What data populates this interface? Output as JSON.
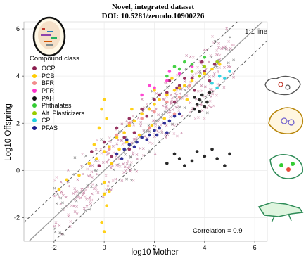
{
  "header": {
    "title": "Novel, integrated dataset",
    "subtitle": "DOI: 10.5281/zenodo.10900226"
  },
  "legend": {
    "title": "Compound class",
    "items": [
      {
        "label": "OCP",
        "color": "#8b1e4f"
      },
      {
        "label": "PCB",
        "color": "#ffcc00"
      },
      {
        "label": "BFR",
        "color": "#f28c8c"
      },
      {
        "label": "PFR",
        "color": "#ff33cc"
      },
      {
        "label": "PAH",
        "color": "#111111"
      },
      {
        "label": "Phthalates",
        "color": "#33cc33"
      },
      {
        "label": "Alt. Plasticizers",
        "color": "#99cc00"
      },
      {
        "label": "CP",
        "color": "#1fd0e0"
      },
      {
        "label": "PFAS",
        "color": "#1a1a8c"
      }
    ]
  },
  "annotations": {
    "line_label": "1:1 line",
    "correlation": "Correlation =  0.9"
  },
  "chart_data": {
    "type": "scatter",
    "xlabel": "log10 Mother",
    "ylabel": "Log10 Offspring",
    "xlim": [
      -3.2,
      6.5
    ],
    "ylim": [
      -3.0,
      6.3
    ],
    "x_ticks": [
      -2,
      0,
      2,
      4,
      6
    ],
    "y_ticks": [
      -2,
      0,
      2,
      4,
      6
    ],
    "grid": true,
    "reference_lines": [
      {
        "name": "1:1 line",
        "slope": 1,
        "intercept": 0,
        "style": "solid"
      },
      {
        "slope": 1,
        "intercept": 1,
        "style": "dashed"
      },
      {
        "slope": 1,
        "intercept": -1,
        "style": "dashed"
      }
    ],
    "correlation": 0.9,
    "series": [
      {
        "name": "OCP",
        "color": "#8b1e4f",
        "points": [
          [
            -0.5,
            0.8
          ],
          [
            0,
            1.2
          ],
          [
            0.5,
            1.8
          ],
          [
            1,
            2.2
          ],
          [
            1.5,
            2.6
          ],
          [
            2,
            3.0
          ],
          [
            2.5,
            3.3
          ],
          [
            3,
            3.6
          ],
          [
            3.5,
            3.9
          ],
          [
            4,
            4.2
          ],
          [
            4.4,
            4.5
          ],
          [
            2.2,
            3.2
          ],
          [
            1.2,
            1.6
          ],
          [
            0.3,
            0.6
          ],
          [
            2.8,
            2.9
          ],
          [
            3.6,
            3.4
          ],
          [
            4.2,
            3.8
          ],
          [
            0.8,
            1.4
          ],
          [
            1.7,
            2.3
          ],
          [
            3.2,
            3.9
          ],
          [
            -0.2,
            0.2
          ],
          [
            2.6,
            3.8
          ],
          [
            3.9,
            4.6
          ],
          [
            1.0,
            0.9
          ],
          [
            2.9,
            3.5
          ]
        ]
      },
      {
        "name": "PCB",
        "color": "#ffcc00",
        "points": [
          [
            -1.8,
            -0.8
          ],
          [
            -1.5,
            -0.4
          ],
          [
            -1.0,
            -0.2
          ],
          [
            -0.6,
            0.3
          ],
          [
            -0.3,
            0.5
          ],
          [
            0,
            0.8
          ],
          [
            0.2,
            1.0
          ],
          [
            0.5,
            1.4
          ],
          [
            0.8,
            1.6
          ],
          [
            1,
            1.9
          ],
          [
            1.2,
            2.1
          ],
          [
            1.5,
            2.4
          ],
          [
            1.8,
            2.6
          ],
          [
            2,
            2.8
          ],
          [
            2.2,
            3.0
          ],
          [
            2.5,
            3.2
          ],
          [
            2.8,
            3.4
          ],
          [
            3,
            3.5
          ],
          [
            3.2,
            3.6
          ],
          [
            3.5,
            3.8
          ],
          [
            3.8,
            4.0
          ],
          [
            4,
            4.1
          ],
          [
            4.3,
            4.3
          ],
          [
            4.6,
            4.5
          ],
          [
            -0.2,
            1.8
          ],
          [
            -0.1,
            2.6
          ],
          [
            0,
            3.0
          ],
          [
            0.1,
            2.2
          ],
          [
            0,
            -0.5
          ],
          [
            0,
            -1.0
          ],
          [
            0.1,
            -1.5
          ],
          [
            -0.1,
            -2.2
          ],
          [
            0,
            -2.6
          ],
          [
            0.2,
            -0.9
          ],
          [
            0.6,
            0.9
          ],
          [
            1.4,
            1.5
          ],
          [
            2.4,
            2.2
          ],
          [
            3.3,
            3.0
          ],
          [
            0.3,
            0.3
          ],
          [
            1.1,
            2.6
          ],
          [
            2.0,
            3.4
          ],
          [
            2.7,
            3.9
          ],
          [
            -0.4,
            1.1
          ],
          [
            0.9,
            1.2
          ],
          [
            1.9,
            1.9
          ]
        ]
      },
      {
        "name": "BFR",
        "color": "#f28c8c",
        "points": [
          [
            0.5,
            1.5
          ],
          [
            1,
            2.0
          ],
          [
            1.5,
            2.2
          ],
          [
            2,
            2.5
          ],
          [
            2.5,
            2.9
          ],
          [
            3,
            3.1
          ],
          [
            0.2,
            0.9
          ],
          [
            1.8,
            1.8
          ],
          [
            2.8,
            2.4
          ],
          [
            3.4,
            3.6
          ]
        ]
      },
      {
        "name": "PFR",
        "color": "#ff33cc",
        "points": [
          [
            1.5,
            3.2
          ],
          [
            2,
            3.5
          ],
          [
            2.5,
            3.8
          ],
          [
            3,
            4.1
          ],
          [
            3.5,
            4.4
          ],
          [
            1.8,
            3.6
          ],
          [
            2.6,
            4.2
          ]
        ]
      },
      {
        "name": "PAH",
        "color": "#111111",
        "points": [
          [
            3.6,
            2.6
          ],
          [
            3.7,
            2.8
          ],
          [
            3.8,
            3.0
          ],
          [
            3.9,
            3.2
          ],
          [
            4,
            2.7
          ],
          [
            4.1,
            2.9
          ],
          [
            3.8,
            2.5
          ],
          [
            3.6,
            3.1
          ],
          [
            4.2,
            3.3
          ],
          [
            2.5,
            0.3
          ],
          [
            3,
            0.5
          ],
          [
            3.5,
            0.4
          ],
          [
            4,
            0.6
          ],
          [
            4.5,
            0.5
          ],
          [
            5,
            0.7
          ],
          [
            3.2,
            0.2
          ],
          [
            4.8,
            0.2
          ],
          [
            2.8,
            0.7
          ],
          [
            3.7,
            0.8
          ],
          [
            4.3,
            0.9
          ]
        ]
      },
      {
        "name": "Phthalates",
        "color": "#33cc33",
        "points": [
          [
            2.5,
            4.0
          ],
          [
            3,
            4.3
          ],
          [
            3.5,
            4.5
          ],
          [
            4,
            4.8
          ],
          [
            3.2,
            4.6
          ],
          [
            2.8,
            4.4
          ]
        ]
      },
      {
        "name": "Alt. Plasticizers",
        "color": "#99cc00",
        "points": [
          [
            3.5,
            4.2
          ],
          [
            4,
            4.4
          ],
          [
            4.5,
            4.6
          ],
          [
            3.8,
            4.0
          ]
        ]
      },
      {
        "name": "CP",
        "color": "#1fd0e0",
        "points": [
          [
            4.3,
            3.7
          ],
          [
            4.6,
            4.0
          ],
          [
            4.8,
            3.9
          ],
          [
            5,
            4.2
          ],
          [
            4.5,
            3.5
          ]
        ]
      },
      {
        "name": "PFAS",
        "color": "#1a1a8c",
        "points": [
          [
            0.5,
            0.7
          ],
          [
            0.8,
            0.9
          ],
          [
            1,
            1.1
          ],
          [
            1.2,
            1.0
          ],
          [
            1.5,
            1.4
          ],
          [
            1.8,
            1.5
          ],
          [
            2,
            1.7
          ],
          [
            2.2,
            1.8
          ],
          [
            2.4,
            2.0
          ],
          [
            2.6,
            2.1
          ],
          [
            2.8,
            2.3
          ],
          [
            3,
            2.4
          ],
          [
            1.3,
            1.2
          ],
          [
            1.7,
            1.3
          ],
          [
            2.1,
            1.5
          ],
          [
            0.9,
            1.3
          ],
          [
            0.7,
            0.5
          ],
          [
            2.5,
            1.6
          ]
        ]
      }
    ]
  }
}
